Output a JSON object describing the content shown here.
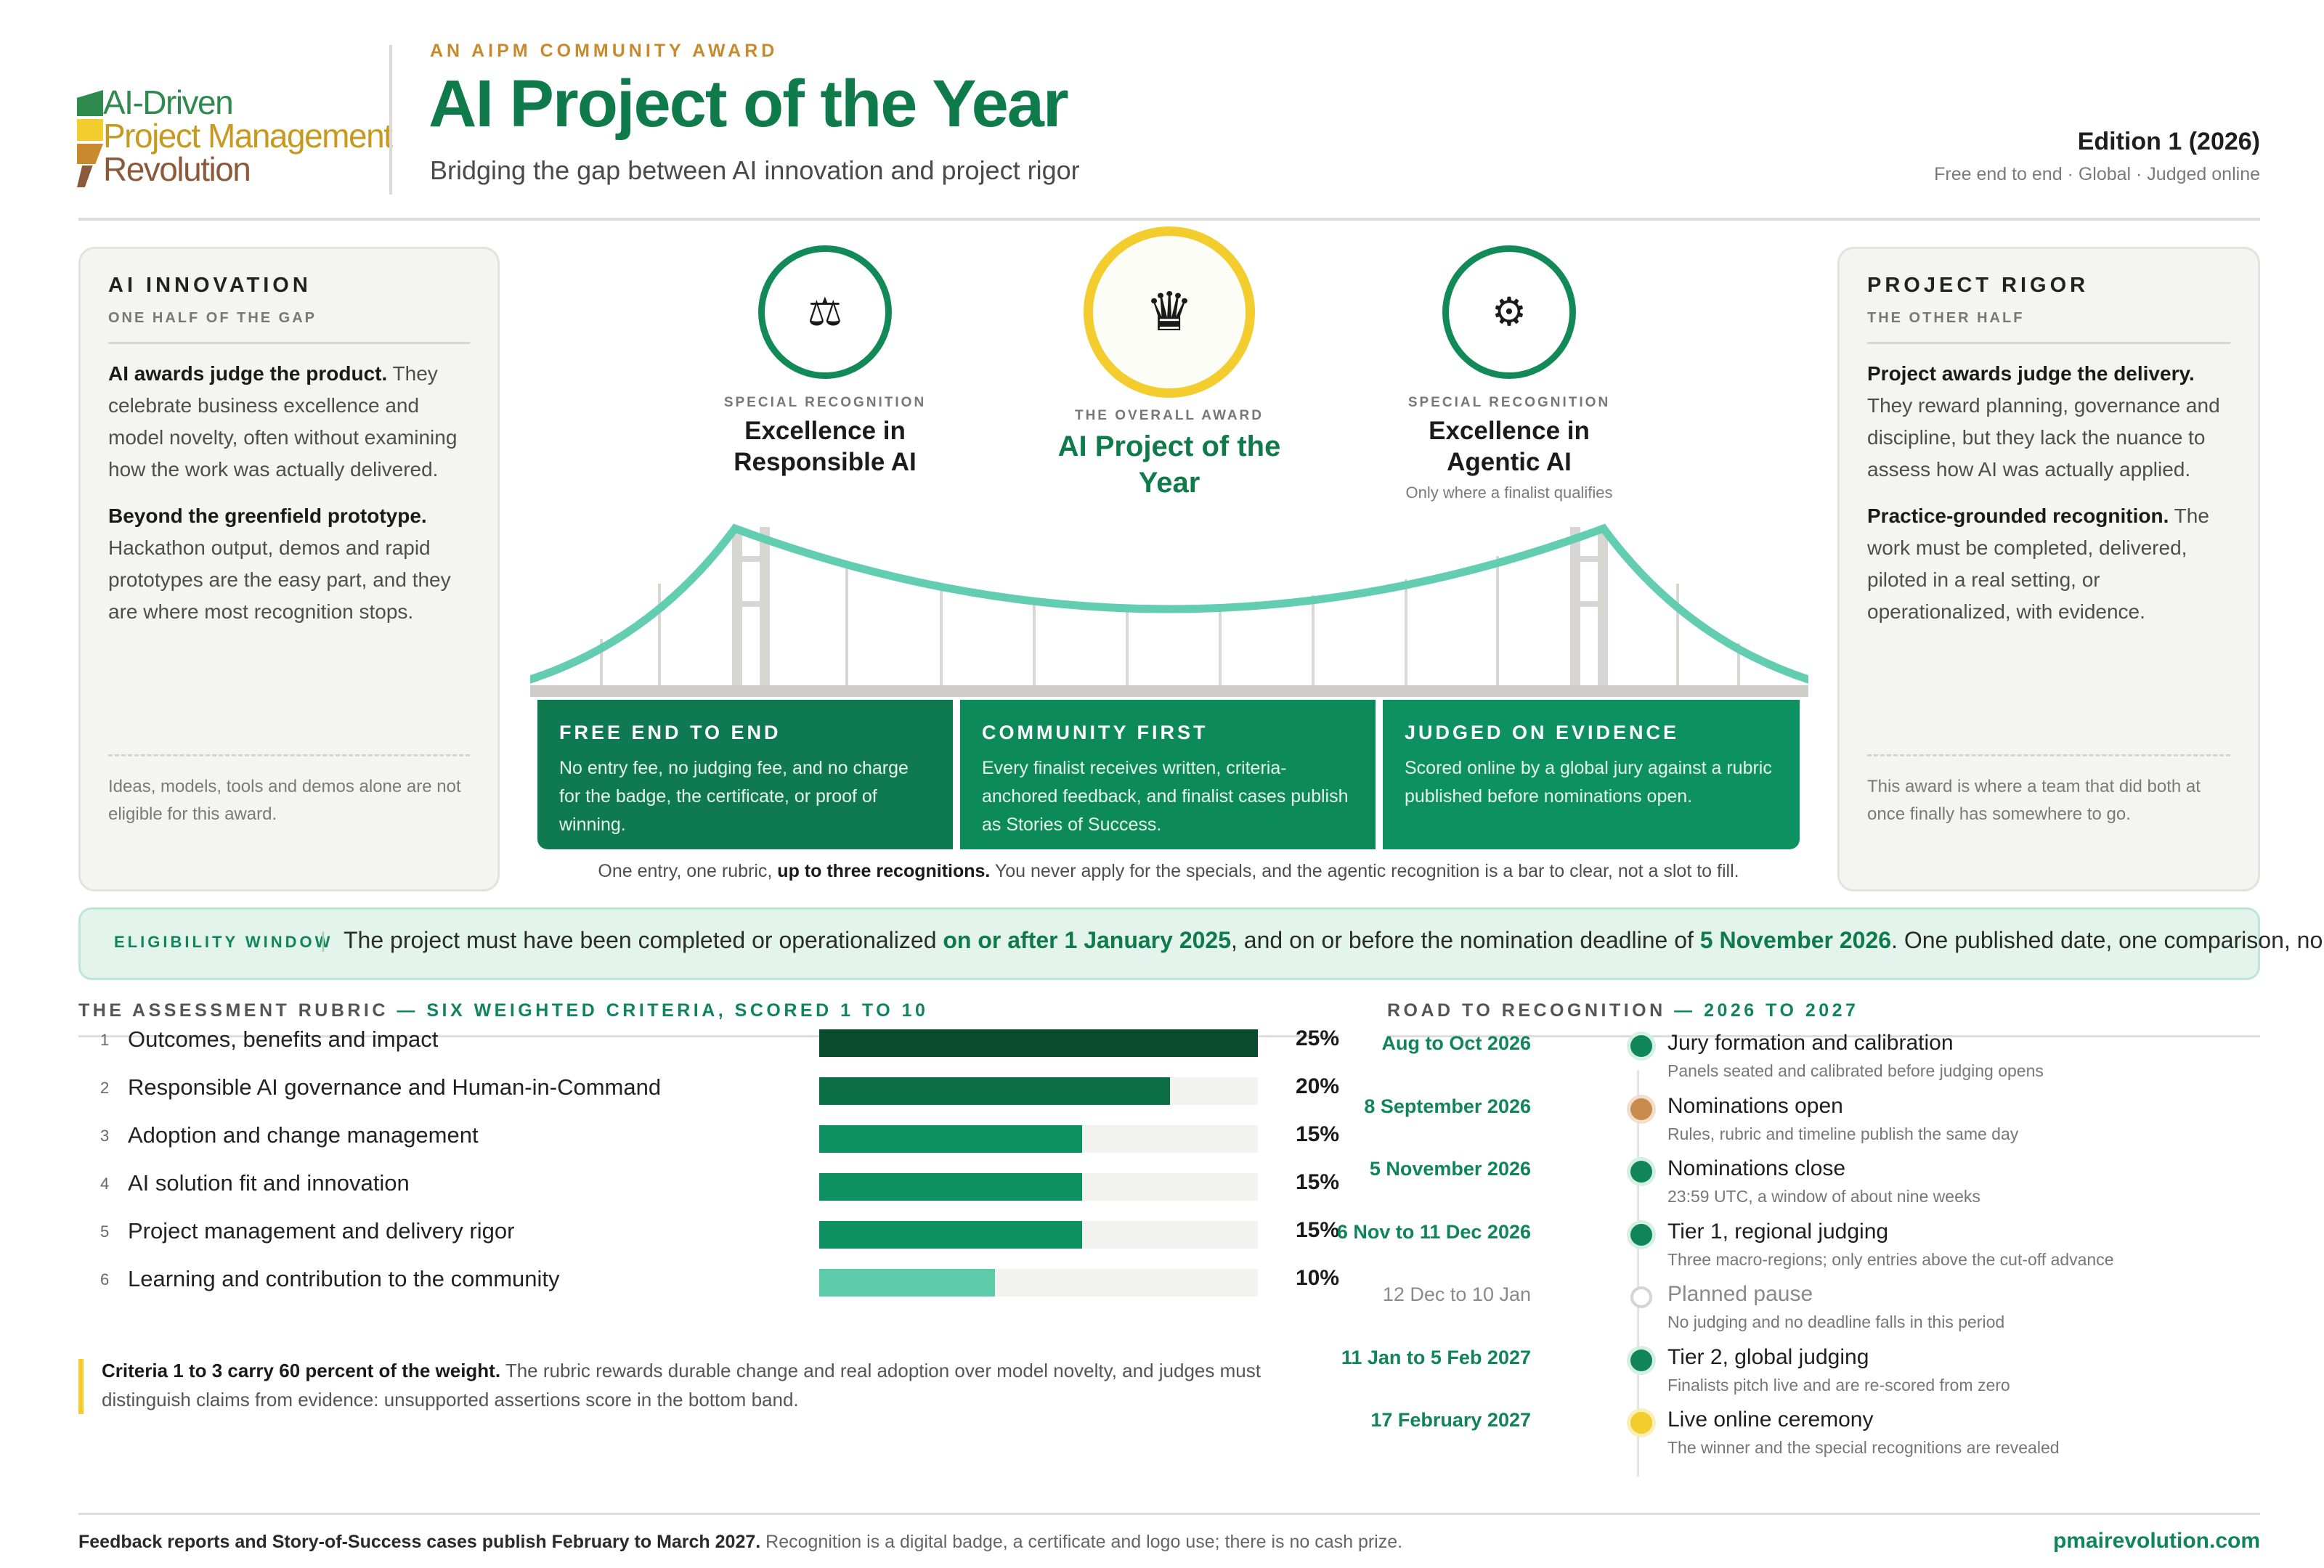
{
  "logo": {
    "line1": "AI-Driven",
    "line2": "Project Management",
    "line3": "Revolution",
    "colors": [
      "#2f8a4e",
      "#f3cc2e",
      "#c98a2e",
      "#8a5a3a"
    ]
  },
  "header": {
    "eyebrow": "AN AIPM COMMUNITY AWARD",
    "title": "AI Project of the Year",
    "subtitle": "Bridging the gap between AI innovation and project rigor",
    "edition": "Edition 1 (2026)",
    "edition_sub": "Free end to end · Global · Judged online"
  },
  "left_panel": {
    "title": "AI INNOVATION",
    "subtitle": "ONE HALF OF THE GAP",
    "p1_bold": "AI awards judge the product.",
    "p1_text": " They celebrate business excellence and model novelty, often without examining how the work was actually delivered.",
    "p2_bold": "Beyond the greenfield prototype.",
    "p2_text": " Hackathon output, demos and rapid prototypes are the easy part, and they are where most recognition stops.",
    "footnote": "Ideas, models, tools and demos alone are not eligible for this award."
  },
  "right_panel": {
    "title": "PROJECT RIGOR",
    "subtitle": "THE OTHER HALF",
    "p1_bold": "Project awards judge the delivery.",
    "p1_text": " They reward planning, governance and discipline, but they lack the nuance to assess how AI was actually applied.",
    "p2_bold": "Practice-grounded recognition.",
    "p2_text": " The work must be completed, delivered, piloted in a real setting, or operationalized, with evidence.",
    "footnote": "This award is where a team that did both at once finally has somewhere to go."
  },
  "awards": {
    "responsible": {
      "kicker": "SPECIAL RECOGNITION",
      "name": "Excellence in Responsible AI",
      "icon": "scales-icon"
    },
    "overall": {
      "kicker": "THE OVERALL AWARD",
      "name": "AI Project of the Year",
      "icon": "crown-icon"
    },
    "agentic": {
      "kicker": "SPECIAL RECOGNITION",
      "name": "Excellence in Agentic AI",
      "note": "Only where a finalist qualifies",
      "icon": "gear-icon"
    }
  },
  "pillars": {
    "free": {
      "title": "FREE END TO END",
      "body": "No entry fee, no judging fee, and no charge for the badge, the certificate, or proof of winning."
    },
    "community": {
      "title": "COMMUNITY FIRST",
      "body": "Every finalist receives written, criteria-anchored feedback, and finalist cases publish as Stories of Success."
    },
    "evidence": {
      "title": "JUDGED ON EVIDENCE",
      "body": "Scored online by a global jury against a rubric published before nominations open."
    },
    "caption_pre": "One entry, one rubric, ",
    "caption_bold": "up to three recognitions.",
    "caption_post": " You never apply for the specials, and the agentic recognition is a bar to clear, not a slot to fill."
  },
  "eligibility": {
    "label": "ELIGIBILITY WINDOW",
    "separator": "|",
    "text_pre": "The project must have been completed or operationalized ",
    "text_bold1": "on or after 1 January 2025",
    "text_mid": ", and on or before the nomination deadline of ",
    "text_bold2": "5 November 2026",
    "text_post": ". One published date, one comparison, no arithmetic."
  },
  "rubric": {
    "head": "THE ASSESSMENT RUBRIC",
    "head_hl": " — SIX WEIGHTED CRITERIA, SCORED 1 TO 10",
    "criteria": [
      {
        "num": "1",
        "label": "Outcomes, benefits and impact",
        "weight": 25,
        "pct": "25%",
        "color": "#0a4a2e"
      },
      {
        "num": "2",
        "label": "Responsible AI governance and Human-in-Command",
        "weight": 20,
        "pct": "20%",
        "color": "#0c6e44"
      },
      {
        "num": "3",
        "label": "Adoption and change management",
        "weight": 15,
        "pct": "15%",
        "color": "#0d9160"
      },
      {
        "num": "4",
        "label": "AI solution fit and innovation",
        "weight": 15,
        "pct": "15%",
        "color": "#0d9160"
      },
      {
        "num": "5",
        "label": "Project management and delivery rigor",
        "weight": 15,
        "pct": "15%",
        "color": "#0d9160"
      },
      {
        "num": "6",
        "label": "Learning and contribution to the community",
        "weight": 10,
        "pct": "10%",
        "color": "#5ccbaa"
      }
    ],
    "note_bold": "Criteria 1 to 3 carry 60 percent of the weight.",
    "note_text": " The rubric rewards durable change and real adoption over model novelty, and judges must distinguish claims from evidence: unsupported assertions score in the bottom band."
  },
  "timeline": {
    "head": "ROAD TO RECOGNITION",
    "head_hl": " — 2026 TO 2027",
    "events": [
      {
        "date": "Aug to Oct 2026",
        "title": "Jury formation and calibration",
        "sub": "Panels seated and calibrated before judging opens",
        "color": "#10855a",
        "muted": false
      },
      {
        "date": "8 September 2026",
        "title": "Nominations open",
        "sub": "Rules, rubric and timeline publish the same day",
        "color": "#c98a4e",
        "muted": false
      },
      {
        "date": "5 November 2026",
        "title": "Nominations close",
        "sub": "23:59 UTC, a window of about nine weeks",
        "color": "#10855a",
        "muted": false
      },
      {
        "date": "6 Nov to 11 Dec 2026",
        "title": "Tier 1, regional judging",
        "sub": "Three macro-regions; only entries above the cut-off advance",
        "color": "#10855a",
        "muted": false
      },
      {
        "date": "12 Dec to 10 Jan",
        "title": "Planned pause",
        "sub": "No judging and no deadline falls in this period",
        "color": "#ffffff",
        "muted": true
      },
      {
        "date": "11 Jan to 5 Feb 2027",
        "title": "Tier 2, global judging",
        "sub": "Finalists pitch live and are re-scored from zero",
        "color": "#10855a",
        "muted": false
      },
      {
        "date": "17 February 2027",
        "title": "Live online ceremony",
        "sub": "The winner and the special recognitions are revealed",
        "color": "#f3cc2e",
        "muted": false
      }
    ]
  },
  "footer": {
    "bold": "Feedback reports and Story-of-Success cases publish February to March 2027.",
    "text": " Recognition is a digital badge, a certificate and logo use; there is no cash prize.",
    "url": "pmairevolution.com"
  }
}
